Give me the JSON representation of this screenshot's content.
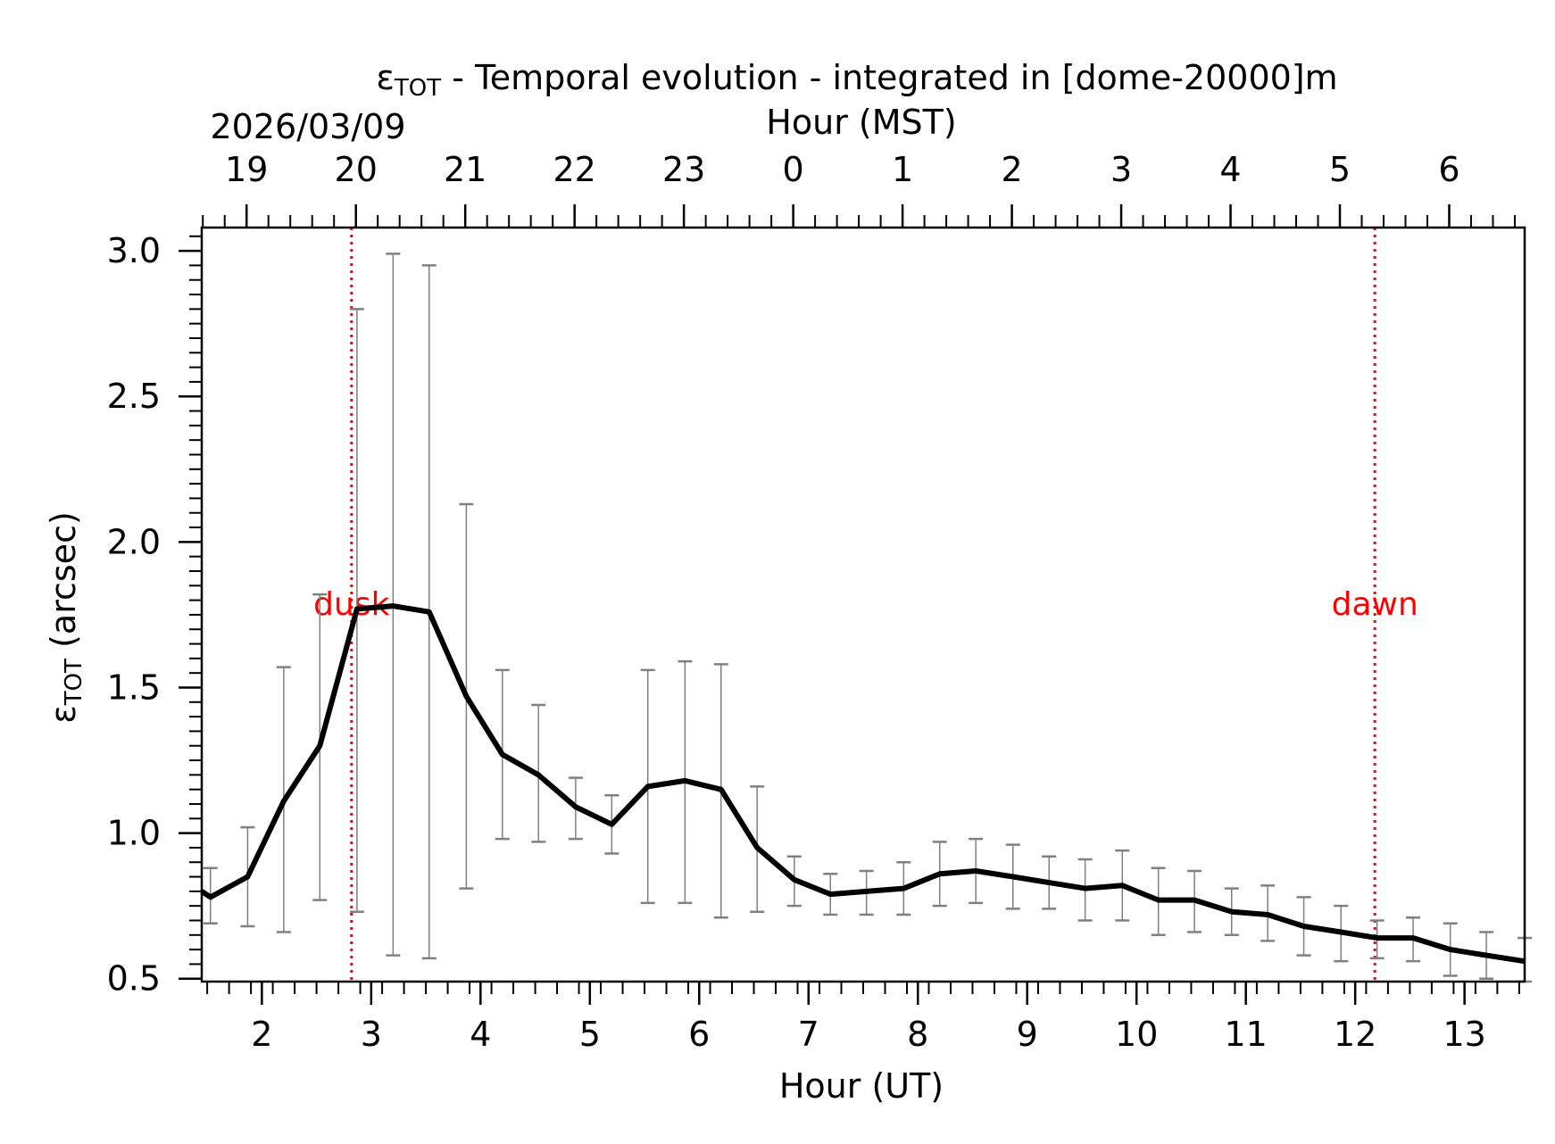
{
  "chart_data": {
    "type": "line",
    "title_symbol": "ε",
    "title_subscript": "TOT",
    "title_rest": " - Temporal evolution - integrated in [dome-20000]m",
    "date": "2026/03/09",
    "xlabel": "Hour (UT)",
    "x2label": "Hour (MST)",
    "ylabel_symbol": "ε",
    "ylabel_subscript": "TOT",
    "ylabel_rest": " (arcsec)",
    "xlim": [
      1.45,
      13.55
    ],
    "ylim": [
      0.49,
      3.08
    ],
    "x_ticks": [
      2,
      3,
      4,
      5,
      6,
      7,
      8,
      9,
      10,
      11,
      12,
      13
    ],
    "x_tick_labels": [
      "2",
      "3",
      "4",
      "5",
      "6",
      "7",
      "8",
      "9",
      "10",
      "11",
      "12",
      "13"
    ],
    "x2_ticks": [
      1.86,
      2.86,
      3.86,
      4.86,
      5.86,
      6.86,
      7.86,
      8.86,
      9.86,
      10.86,
      11.86,
      12.86
    ],
    "x2_tick_labels": [
      "19",
      "20",
      "21",
      "22",
      "23",
      "0",
      "1",
      "2",
      "3",
      "4",
      "5",
      "6"
    ],
    "y_ticks": [
      0.5,
      1.0,
      1.5,
      2.0,
      2.5,
      3.0
    ],
    "y_tick_labels": [
      "0.5",
      "1.0",
      "1.5",
      "2.0",
      "2.5",
      "3.0"
    ],
    "series": [
      {
        "name": "eps_tot",
        "color": "#000000",
        "x": [
          1.45,
          1.53,
          1.87,
          2.2,
          2.53,
          2.87,
          3.2,
          3.53,
          3.87,
          4.2,
          4.53,
          4.87,
          5.2,
          5.53,
          5.87,
          6.2,
          6.53,
          6.87,
          7.2,
          7.53,
          7.87,
          8.2,
          8.53,
          8.87,
          9.2,
          9.53,
          9.87,
          10.2,
          10.53,
          10.87,
          11.2,
          11.53,
          11.87,
          12.2,
          12.53,
          12.87,
          13.2,
          13.55
        ],
        "y": [
          0.8,
          0.78,
          0.85,
          1.11,
          1.3,
          1.77,
          1.78,
          1.76,
          1.47,
          1.27,
          1.2,
          1.09,
          1.03,
          1.16,
          1.18,
          1.15,
          0.95,
          0.84,
          0.79,
          0.8,
          0.81,
          0.86,
          0.87,
          0.85,
          0.83,
          0.81,
          0.82,
          0.77,
          0.77,
          0.73,
          0.72,
          0.68,
          0.66,
          0.64,
          0.64,
          0.6,
          0.58,
          0.56
        ],
        "err_low": [
          null,
          0.69,
          0.68,
          0.66,
          0.77,
          0.73,
          0.58,
          0.57,
          0.81,
          0.98,
          0.97,
          0.98,
          0.93,
          0.76,
          0.76,
          0.71,
          0.73,
          0.75,
          0.72,
          0.72,
          0.72,
          0.75,
          0.76,
          0.74,
          0.74,
          0.7,
          0.7,
          0.65,
          0.66,
          0.65,
          0.63,
          0.58,
          0.56,
          0.57,
          0.56,
          0.51,
          0.5,
          0.49
        ],
        "err_high": [
          null,
          0.88,
          1.02,
          1.57,
          1.82,
          2.8,
          2.99,
          2.95,
          2.13,
          1.56,
          1.44,
          1.19,
          1.13,
          1.56,
          1.59,
          1.58,
          1.16,
          0.92,
          0.86,
          0.87,
          0.9,
          0.97,
          0.98,
          0.96,
          0.92,
          0.91,
          0.94,
          0.88,
          0.87,
          0.81,
          0.82,
          0.78,
          0.75,
          0.7,
          0.71,
          0.69,
          0.66,
          0.64
        ]
      }
    ],
    "annotations": [
      {
        "label": "dusk",
        "x": 2.82,
        "color": "#ff0000"
      },
      {
        "label": "dawn",
        "x": 12.18,
        "color": "#ff0000"
      }
    ],
    "errorbar_color": "#808080"
  }
}
